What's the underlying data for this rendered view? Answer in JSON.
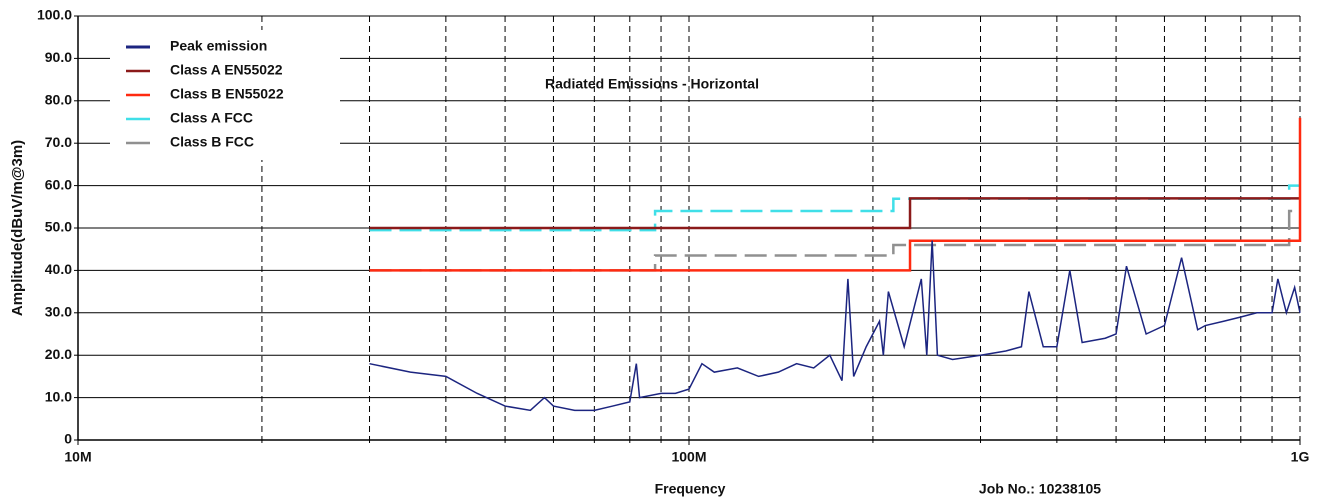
{
  "chart_data": {
    "type": "line",
    "title": "Radiated Emissions - Horizontal",
    "xlabel": "Frequency",
    "ylabel": "Amplitude(dBuV/m@3m)",
    "annotation": "Job No.: 10238105",
    "xscale": "log",
    "xlim": [
      10,
      1000
    ],
    "ylim": [
      0,
      100
    ],
    "xticks": [
      {
        "value": 10,
        "label": "10M"
      },
      {
        "value": 100,
        "label": "100M"
      },
      {
        "value": 1000,
        "label": "1G"
      }
    ],
    "xminorticks": [
      20,
      30,
      40,
      50,
      60,
      70,
      80,
      90,
      200,
      300,
      400,
      500,
      600,
      700,
      800,
      900
    ],
    "yticks": [
      0,
      {
        "value": 10,
        "label": "10.0"
      },
      {
        "value": 20,
        "label": "20.0"
      },
      {
        "value": 30,
        "label": "30.0"
      },
      {
        "value": 40,
        "label": "40.0"
      },
      {
        "value": 50,
        "label": "50.0"
      },
      {
        "value": 60,
        "label": "60.0"
      },
      {
        "value": 70,
        "label": "70.0"
      },
      {
        "value": 80,
        "label": "80.0"
      },
      {
        "value": 90,
        "label": "90.0"
      },
      {
        "value": 100,
        "label": "100.0"
      }
    ],
    "grid": true,
    "legend": "upper left",
    "series": [
      {
        "name": "Peak emission",
        "color": "#1c2580",
        "dashed": false,
        "x": [
          30,
          35,
          40,
          45,
          50,
          55,
          58,
          60,
          65,
          70,
          75,
          80,
          82,
          83,
          90,
          95,
          100,
          105,
          110,
          120,
          130,
          140,
          150,
          160,
          170,
          178,
          182,
          186,
          195,
          205,
          208,
          212,
          225,
          240,
          245,
          250,
          255,
          270,
          300,
          330,
          350,
          360,
          380,
          400,
          420,
          440,
          480,
          500,
          520,
          560,
          600,
          640,
          680,
          700,
          750,
          800,
          850,
          900,
          920,
          950,
          980,
          1000
        ],
        "values": [
          18,
          16,
          15,
          11,
          8,
          7,
          10,
          8,
          7,
          7,
          8,
          9,
          18,
          10,
          11,
          11,
          12,
          18,
          16,
          17,
          15,
          16,
          18,
          17,
          20,
          14,
          38,
          15,
          22,
          28,
          20,
          35,
          22,
          38,
          20,
          47,
          20,
          19,
          20,
          21,
          22,
          35,
          22,
          22,
          40,
          23,
          24,
          25,
          41,
          25,
          27,
          43,
          26,
          27,
          28,
          29,
          30,
          30,
          38,
          30,
          36,
          30
        ]
      },
      {
        "name": "Class A EN55022",
        "color": "#8b1a1a",
        "dashed": false,
        "x": [
          30,
          230,
          230,
          1000
        ],
        "values": [
          50,
          50,
          57,
          57
        ]
      },
      {
        "name": "Class B EN55022",
        "color": "#ff2a10",
        "dashed": false,
        "x": [
          30,
          230,
          230,
          1000,
          1000
        ],
        "values": [
          40,
          40,
          47,
          47,
          76
        ]
      },
      {
        "name": "Class A FCC",
        "color": "#40dfe8",
        "dashed": true,
        "x": [
          30,
          88,
          88,
          216,
          216,
          960,
          960,
          1000
        ],
        "values": [
          49.5,
          49.5,
          54,
          54,
          56.9,
          56.9,
          60,
          60
        ]
      },
      {
        "name": "Class B FCC",
        "color": "#909090",
        "dashed": true,
        "x": [
          30,
          88,
          88,
          216,
          216,
          960,
          960,
          1000
        ],
        "values": [
          40,
          40,
          43.5,
          43.5,
          46,
          46,
          54,
          54
        ]
      }
    ]
  }
}
